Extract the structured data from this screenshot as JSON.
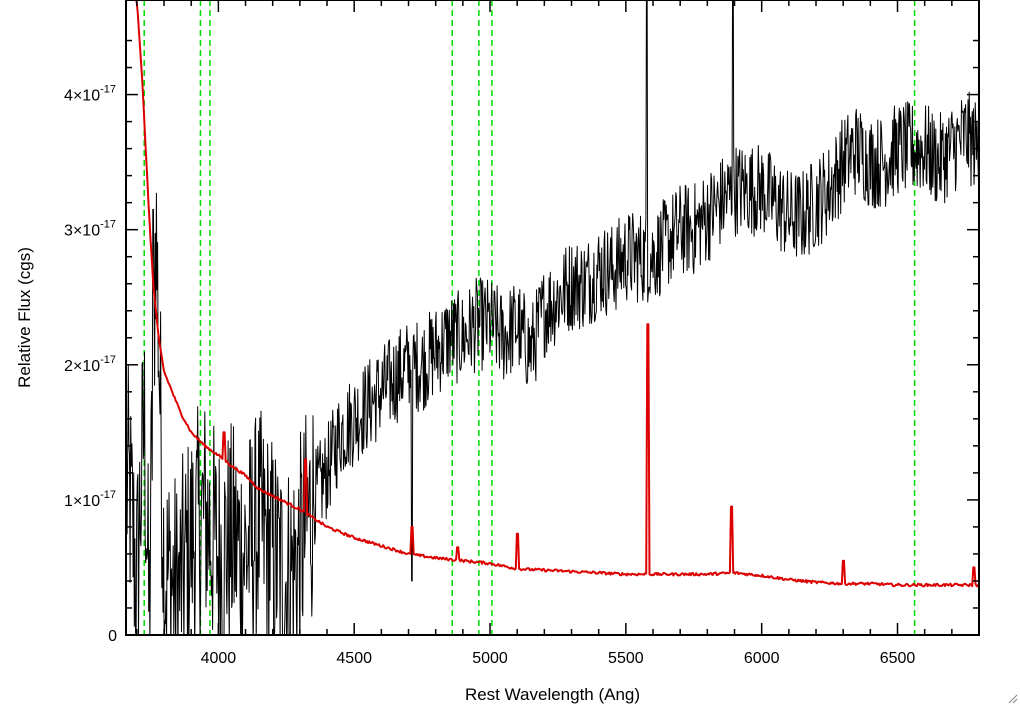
{
  "chart_data": {
    "type": "line",
    "title": "",
    "xlabel": "Rest Wavelength (Ang)",
    "ylabel": "Relative Flux (cgs)",
    "xlim": [
      3660,
      6800
    ],
    "ylim": [
      0,
      4.7e-17
    ],
    "x_ticks": [
      {
        "value": 4000,
        "label": "4000"
      },
      {
        "value": 4500,
        "label": "4500"
      },
      {
        "value": 5000,
        "label": "5000"
      },
      {
        "value": 5500,
        "label": "5500"
      },
      {
        "value": 6000,
        "label": "6000"
      },
      {
        "value": 6500,
        "label": "6500"
      }
    ],
    "y_ticks": [
      {
        "value": 0,
        "label": "0",
        "mantissa": "0",
        "exponent": ""
      },
      {
        "value": 1e-17,
        "label": "1×10-17",
        "mantissa": "1×10",
        "exponent": "-17"
      },
      {
        "value": 2e-17,
        "label": "2×10-17",
        "mantissa": "2×10",
        "exponent": "-17"
      },
      {
        "value": 3e-17,
        "label": "3×10-17",
        "mantissa": "3×10",
        "exponent": "-17"
      },
      {
        "value": 4e-17,
        "label": "4×10-17",
        "mantissa": "4×10",
        "exponent": "-17"
      }
    ],
    "vertical_lines": [
      3727,
      3934,
      3969,
      4861,
      4959,
      5007,
      6563
    ],
    "colors": {
      "spectrum": "#000000",
      "error": "#dd0000",
      "lines": "#00dd00",
      "frame": "#000000"
    },
    "series": [
      {
        "key": "spectrum",
        "points": [
          [
            3670,
            1.1e-17
          ],
          [
            3700,
            4e-18
          ],
          [
            3727,
            1.6e-17
          ],
          [
            3745,
            1e-18
          ],
          [
            3770,
            3.1e-17
          ],
          [
            3800,
            5e-18
          ],
          [
            3850,
            3e-18
          ],
          [
            3900,
            7e-18
          ],
          [
            3950,
            9e-18
          ],
          [
            4000,
            6e-18
          ],
          [
            4050,
            7e-18
          ],
          [
            4100,
            6e-18
          ],
          [
            4150,
            8e-18
          ],
          [
            4200,
            6e-18
          ],
          [
            4250,
            4e-18
          ],
          [
            4300,
            6e-18
          ],
          [
            4350,
            1e-17
          ],
          [
            4400,
            1.2e-17
          ],
          [
            4450,
            1.5e-17
          ],
          [
            4500,
            1.6e-17
          ],
          [
            4550,
            1.7e-17
          ],
          [
            4600,
            1.8e-17
          ],
          [
            4650,
            1.9e-17
          ],
          [
            4700,
            2e-17
          ],
          [
            4750,
            2e-17
          ],
          [
            4800,
            2.1e-17
          ],
          [
            4850,
            2.2e-17
          ],
          [
            4900,
            2.2e-17
          ],
          [
            4950,
            2.3e-17
          ],
          [
            5000,
            2.3e-17
          ],
          [
            5050,
            2.2e-17
          ],
          [
            5100,
            2.3e-17
          ],
          [
            5150,
            2.1e-17
          ],
          [
            5200,
            2.4e-17
          ],
          [
            5250,
            2.5e-17
          ],
          [
            5300,
            2.6e-17
          ],
          [
            5350,
            2.6e-17
          ],
          [
            5400,
            2.7e-17
          ],
          [
            5450,
            2.7e-17
          ],
          [
            5500,
            2.8e-17
          ],
          [
            5550,
            2.8e-17
          ],
          [
            5600,
            2.8e-17
          ],
          [
            5650,
            2.9e-17
          ],
          [
            5700,
            3e-17
          ],
          [
            5750,
            3e-17
          ],
          [
            5800,
            3.1e-17
          ],
          [
            5850,
            3.2e-17
          ],
          [
            5900,
            3.3e-17
          ],
          [
            5950,
            3.3e-17
          ],
          [
            6000,
            3.3e-17
          ],
          [
            6050,
            3.2e-17
          ],
          [
            6100,
            3.1e-17
          ],
          [
            6150,
            3.1e-17
          ],
          [
            6200,
            3.2e-17
          ],
          [
            6250,
            3.3e-17
          ],
          [
            6300,
            3.5e-17
          ],
          [
            6350,
            3.6e-17
          ],
          [
            6400,
            3.5e-17
          ],
          [
            6450,
            3.5e-17
          ],
          [
            6500,
            3.6e-17
          ],
          [
            6550,
            3.6e-17
          ],
          [
            6600,
            3.6e-17
          ],
          [
            6650,
            3.5e-17
          ],
          [
            6700,
            3.6e-17
          ],
          [
            6750,
            3.7e-17
          ],
          [
            6800,
            3.6e-17
          ]
        ]
      },
      {
        "key": "error",
        "points": [
          [
            3700,
            4.7e-17
          ],
          [
            3720,
            4.1e-17
          ],
          [
            3740,
            3.3e-17
          ],
          [
            3760,
            2.6e-17
          ],
          [
            3780,
            2.2e-17
          ],
          [
            3800,
            1.95e-17
          ],
          [
            3830,
            1.8e-17
          ],
          [
            3860,
            1.65e-17
          ],
          [
            3900,
            1.5e-17
          ],
          [
            3950,
            1.4e-17
          ],
          [
            4000,
            1.33e-17
          ],
          [
            4050,
            1.25e-17
          ],
          [
            4100,
            1.18e-17
          ],
          [
            4150,
            1.08e-17
          ],
          [
            4200,
            1.03e-17
          ],
          [
            4300,
            9.3e-18
          ],
          [
            4400,
            8e-18
          ],
          [
            4500,
            7.2e-18
          ],
          [
            4600,
            6.6e-18
          ],
          [
            4700,
            6e-18
          ],
          [
            4800,
            5.7e-18
          ],
          [
            4900,
            5.5e-18
          ],
          [
            5000,
            5.3e-18
          ],
          [
            5100,
            4.9e-18
          ],
          [
            5200,
            4.8e-18
          ],
          [
            5300,
            4.7e-18
          ],
          [
            5400,
            4.6e-18
          ],
          [
            5500,
            4.5e-18
          ],
          [
            5600,
            4.5e-18
          ],
          [
            5700,
            4.5e-18
          ],
          [
            5800,
            4.5e-18
          ],
          [
            5900,
            4.6e-18
          ],
          [
            6000,
            4.4e-18
          ],
          [
            6100,
            4.1e-18
          ],
          [
            6200,
            3.9e-18
          ],
          [
            6300,
            3.8e-18
          ],
          [
            6400,
            3.8e-18
          ],
          [
            6500,
            3.7e-18
          ],
          [
            6600,
            3.7e-18
          ],
          [
            6700,
            3.7e-18
          ],
          [
            6800,
            3.7e-18
          ]
        ]
      }
    ]
  }
}
